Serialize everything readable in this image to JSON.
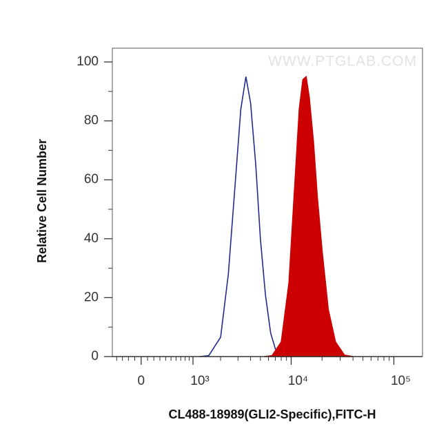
{
  "chart_data": {
    "type": "area",
    "x_label": "CL488-18989(GLI2-Specific),FITC-H",
    "y_label": "Relative Cell Number",
    "watermark": "WWW.PTGLAB.COM",
    "x_scale": "biexponential",
    "x_linear_width": 694,
    "xlim": [
      -480,
      190000
    ],
    "ylim": [
      0,
      100
    ],
    "xticks": [
      {
        "value": 0,
        "label": "0"
      },
      {
        "value": 1000,
        "label": "10³"
      },
      {
        "value": 10000,
        "label": "10⁴"
      },
      {
        "value": 100000,
        "label": "10⁵"
      }
    ],
    "x_minor_ticks": [
      -400,
      -300,
      -200,
      -100,
      100,
      200,
      300,
      400,
      500,
      600,
      700,
      800,
      900,
      2000,
      3000,
      4000,
      5000,
      6000,
      7000,
      8000,
      9000,
      20000,
      30000,
      40000,
      50000,
      60000,
      70000,
      80000,
      90000
    ],
    "yticks": [
      0,
      20,
      40,
      60,
      80,
      100
    ],
    "y_minor_ticks": [
      10,
      30,
      50,
      70,
      90
    ],
    "series": [
      {
        "color": "#1f2a8c",
        "fill": "none",
        "x": [
          1200,
          1500,
          2000,
          2400,
          2800,
          3200,
          3600,
          4000,
          4500,
          5000,
          5600,
          6300,
          7000,
          8000
        ],
        "values": [
          0,
          0.3,
          6.6,
          28,
          58,
          84,
          95,
          86,
          65,
          40,
          21,
          8,
          2.6,
          0
        ]
      },
      {
        "color": "#cc0000",
        "fill": "#cc0000",
        "x": [
          5500,
          6500,
          8000,
          9500,
          11000,
          12000,
          13000,
          14000,
          15000,
          16500,
          18000,
          20000,
          23000,
          27000,
          33000,
          40000
        ],
        "values": [
          0,
          0.3,
          5,
          25,
          62,
          84,
          94,
          95,
          88,
          73,
          54,
          36,
          16,
          5,
          0.5,
          0
        ]
      }
    ]
  }
}
